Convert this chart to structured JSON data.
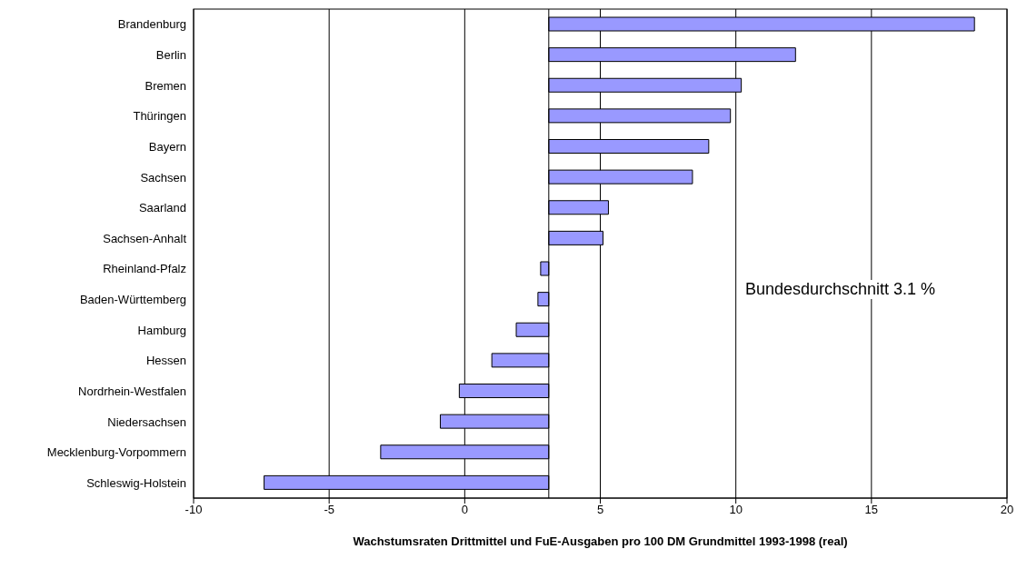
{
  "chart_data": {
    "type": "bar",
    "orientation": "horizontal",
    "xlabel": "Wachstumsraten Drittmittel und FuE-Ausgaben pro 100 DM Grundmittel 1993-1998 (real)",
    "categories": [
      "Brandenburg",
      "Berlin",
      "Bremen",
      "Thüringen",
      "Bayern",
      "Sachsen",
      "Saarland",
      "Sachsen-Anhalt",
      "Rheinland-Pfalz",
      "Baden-Württemberg",
      "Hamburg",
      "Hessen",
      "Nordrhein-Westfalen",
      "Niedersachsen",
      "Mecklenburg-Vorpommern",
      "Schleswig-Holstein"
    ],
    "base": [
      3.1,
      3.1,
      3.1,
      3.1,
      3.1,
      3.1,
      3.1,
      3.1,
      3.1,
      3.1,
      3.1,
      3.1,
      3.1,
      3.1,
      3.1,
      3.1
    ],
    "values": [
      15.7,
      9.1,
      7.1,
      6.7,
      5.9,
      5.3,
      2.2,
      2.0,
      -0.3,
      -0.4,
      -1.2,
      -2.1,
      -3.3,
      -4.0,
      -6.2,
      -10.5
    ],
    "color": "#9999ff",
    "xlim": [
      -10,
      20
    ],
    "xticks": [
      -10,
      -5,
      0,
      5,
      10,
      15,
      20
    ],
    "grid": "x",
    "ref_lines": [
      {
        "axis": "x",
        "value": 3.1,
        "color": "#000000"
      }
    ],
    "annotations": [
      "Bundesdurchschnitt 3.1 %"
    ]
  }
}
